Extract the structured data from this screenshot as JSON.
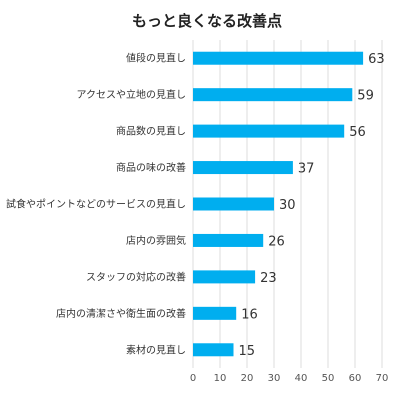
{
  "chart_data": {
    "type": "bar",
    "orientation": "horizontal",
    "title": "もっと良くなる改善点",
    "categories": [
      "値段の見直し",
      "アクセスや立地の見直し",
      "商品数の見直し",
      "商品の味の改善",
      "試食やポイントなどのサービスの見直し",
      "店内の雰囲気",
      "スタッフの対応の改善",
      "店内の清潔さや衛生面の改善",
      "素材の見直し"
    ],
    "values": [
      63,
      59,
      56,
      37,
      30,
      26,
      23,
      16,
      15
    ],
    "xlim": [
      0,
      70
    ],
    "xticks": [
      0,
      10,
      20,
      30,
      40,
      50,
      60,
      70
    ],
    "grid": true,
    "bar_color": "#00aeef"
  }
}
